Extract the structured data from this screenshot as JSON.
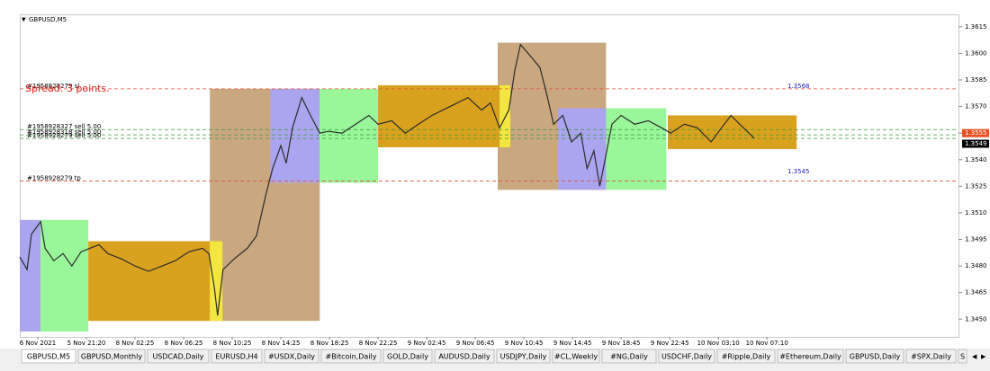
{
  "window": {
    "title": "GBPUSD,M5"
  },
  "chart_data": {
    "type": "line",
    "color": "#2b2b2b",
    "x": [
      -0.37,
      -0.22,
      -0.13,
      0.06,
      0.15,
      0.33,
      0.52,
      0.7,
      0.89,
      1.07,
      1.26,
      1.44,
      1.72,
      2.0,
      2.28,
      2.56,
      2.83,
      3.11,
      3.39,
      3.52,
      3.63,
      3.7,
      3.81,
      4.04,
      4.31,
      4.5,
      4.69,
      4.83,
      5.0,
      5.11,
      5.24,
      5.43,
      5.61,
      5.8,
      5.98,
      6.26,
      6.54,
      6.81,
      7.0,
      7.28,
      7.56,
      7.83,
      8.11,
      8.48,
      8.85,
      9.13,
      9.31,
      9.5,
      9.69,
      9.81,
      9.93,
      10.15,
      10.33,
      10.46,
      10.61,
      10.8,
      10.98,
      11.17,
      11.3,
      11.44,
      11.56,
      11.67,
      11.81,
      12.0,
      12.28,
      12.56,
      12.83,
      13.02,
      13.3,
      13.57,
      13.85,
      14.04,
      14.26,
      14.44,
      14.63,
      14.74
    ],
    "values": [
      1.3485,
      1.3478,
      1.3498,
      1.3505,
      1.349,
      1.3483,
      1.3487,
      1.348,
      1.3488,
      1.349,
      1.3492,
      1.3487,
      1.3484,
      1.348,
      1.3477,
      1.348,
      1.3483,
      1.3488,
      1.349,
      1.3487,
      1.3468,
      1.3452,
      1.3478,
      1.3484,
      1.349,
      1.3497,
      1.352,
      1.3535,
      1.3548,
      1.3538,
      1.3558,
      1.3575,
      1.3565,
      1.3555,
      1.3556,
      1.3555,
      1.356,
      1.3565,
      1.356,
      1.3562,
      1.3555,
      1.356,
      1.3565,
      1.357,
      1.3575,
      1.3568,
      1.3572,
      1.3558,
      1.3568,
      1.359,
      1.3605,
      1.3598,
      1.3592,
      1.3578,
      1.356,
      1.3565,
      1.355,
      1.3555,
      1.3535,
      1.3545,
      1.3525,
      1.354,
      1.356,
      1.3565,
      1.356,
      1.3562,
      1.3558,
      1.3555,
      1.356,
      1.3558,
      1.355,
      1.3557,
      1.3565,
      1.356,
      1.3555,
      1.3552
    ],
    "xlim": [
      -0.37,
      18.94
    ],
    "ylim": [
      1.344,
      1.3621
    ],
    "yticks": [
      1.3615,
      {
        "value": 1.36,
        "label": "1.3600"
      },
      1.3585,
      {
        "value": 1.357,
        "label": "1.3570"
      },
      1.3555,
      {
        "value": 1.354,
        "label": "1.3540"
      },
      1.3525,
      {
        "value": 1.351,
        "label": "1.3510"
      },
      1.3495,
      {
        "value": 1.348,
        "label": "1.3480"
      },
      1.3465,
      {
        "value": 1.345,
        "label": "1.3450"
      }
    ],
    "xticks": [
      {
        "value": 0,
        "label": "6 Nov 2021"
      },
      {
        "value": 1,
        "label": "5 Nov 21:20"
      },
      {
        "value": 2,
        "label": "8 Nov 02:25"
      },
      {
        "value": 3,
        "label": "8 Nov 06:25"
      },
      {
        "value": 4,
        "label": "8 Nov 10:25"
      },
      {
        "value": 5,
        "label": "8 Nov 14:25"
      },
      {
        "value": 6,
        "label": "8 Nov 18:25"
      },
      {
        "value": 7,
        "label": "8 Nov 22:25"
      },
      {
        "value": 8,
        "label": "9 Nov 02:45"
      },
      {
        "value": 9,
        "label": "9 Nov 06:45"
      },
      {
        "value": 10,
        "label": "9 Nov 10:45"
      },
      {
        "value": 11,
        "label": "9 Nov 14:45"
      },
      {
        "value": 12,
        "label": "9 Nov 18:45"
      },
      {
        "value": 13,
        "label": "9 Nov 22:45"
      },
      {
        "value": 14,
        "label": "10 Nov 03:10"
      },
      {
        "value": 15,
        "label": "10 Nov 07:10"
      }
    ],
    "zones": [
      {
        "x": [
          -0.37,
          0.06
        ],
        "y": [
          1.3506,
          1.3443
        ],
        "color": "#aaa5ee"
      },
      {
        "x": [
          0.06,
          1.04
        ],
        "y": [
          1.3506,
          1.3443
        ],
        "color": "#99f799"
      },
      {
        "x": [
          3.54,
          5.8
        ],
        "y": [
          1.358,
          1.3449
        ],
        "color": "#c9a880"
      },
      {
        "x": [
          1.04,
          3.54
        ],
        "y": [
          1.3494,
          1.3449
        ],
        "color": "#d9a21e"
      },
      {
        "x": [
          3.54,
          3.8
        ],
        "y": [
          1.3494,
          1.3449
        ],
        "color": "#f3e640"
      },
      {
        "x": [
          4.78,
          5.8
        ],
        "y": [
          1.358,
          1.3527
        ],
        "color": "#aaa5ee"
      },
      {
        "x": [
          5.8,
          7.0
        ],
        "y": [
          1.358,
          1.3527
        ],
        "color": "#99f799"
      },
      {
        "x": [
          9.46,
          11.69
        ],
        "y": [
          1.3606,
          1.3523
        ],
        "color": "#c9a880"
      },
      {
        "x": [
          7.0,
          9.5
        ],
        "y": [
          1.3582,
          1.3547
        ],
        "color": "#d9a21e"
      },
      {
        "x": [
          9.5,
          9.72
        ],
        "y": [
          1.3582,
          1.3547
        ],
        "color": "#f3e640"
      },
      {
        "x": [
          10.7,
          11.69
        ],
        "y": [
          1.3569,
          1.3523
        ],
        "color": "#aaa5ee"
      },
      {
        "x": [
          11.69,
          12.93
        ],
        "y": [
          1.3569,
          1.3523
        ],
        "color": "#99f799"
      },
      {
        "x": [
          12.96,
          15.61
        ],
        "y": [
          1.3565,
          1.3546
        ],
        "color": "#d9a21e"
      }
    ],
    "levels": [
      {
        "value": 1.358,
        "color": "#e0503a",
        "label": "#1958928279 sl"
      },
      {
        "value": 1.3557,
        "color": "#3a9a3a",
        "label": "#1958928327 sell 5.00"
      },
      {
        "value": 1.3554,
        "color": "#3a9a3a",
        "label": "#1958928318 sell 5.00"
      },
      {
        "value": 1.3552,
        "color": "#3a9a3a",
        "label": "#1958928279 sell 5.00"
      },
      {
        "value": 1.3528,
        "color": "#e0503a",
        "label": "#1958928279 tp"
      }
    ],
    "spread_text": "Spread: 3 points.",
    "annotations": [
      "1.3568",
      "1.3545"
    ],
    "price_tags": [
      {
        "value": 1.3555,
        "color": "#e8501e"
      },
      {
        "value": 1.3549,
        "color": "#000000"
      }
    ]
  },
  "tabs": [
    "GBPUSD,M5",
    "GBPUSD,Monthly",
    "USDCAD,Daily",
    "EURUSD,H4",
    "#USDX,Daily",
    "#Bitcoin,Daily",
    "GOLD,Daily",
    "AUDUSD,Daily",
    "USDJPY,Daily",
    "#CL,Weekly",
    "#NG,Daily",
    "USDCHF,Daily",
    "#Ripple,Daily",
    "#Ethereum,Daily",
    "GBPUSD,Daily",
    "#SPX,Daily",
    "S"
  ]
}
